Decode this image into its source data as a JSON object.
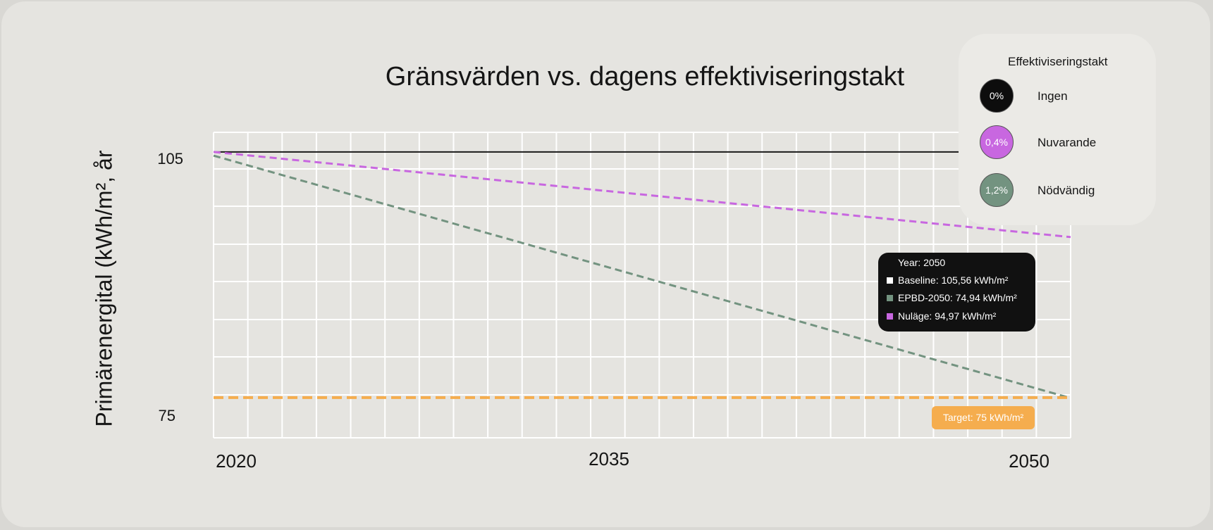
{
  "chart_data": {
    "type": "line",
    "title": "Gränsvärden vs. dagens effektiviseringstakt",
    "ylabel": "Primärenergital (kWh/m², år",
    "xlabel": "",
    "xlim": [
      2020,
      2050
    ],
    "ylim": [
      70,
      108
    ],
    "x_ticks": [
      "2020",
      "2035",
      "2050"
    ],
    "y_ticks": [
      "105",
      "75"
    ],
    "series": [
      {
        "key": "baseline",
        "color": "#1a1a1a",
        "dash": false,
        "x": [
          2020,
          2050
        ],
        "y": [
          105.56,
          105.56
        ]
      },
      {
        "key": "nulage",
        "color": "#c867e0",
        "dash": true,
        "x": [
          2020,
          2050
        ],
        "y": [
          105.56,
          94.97
        ]
      },
      {
        "key": "epbd",
        "color": "#739380",
        "dash": true,
        "x": [
          2020,
          2050
        ],
        "y": [
          105.1,
          74.94
        ]
      },
      {
        "key": "target",
        "color": "#f5ad4e",
        "dash": true,
        "x": [
          2020,
          2050
        ],
        "y": [
          75,
          75
        ]
      }
    ],
    "grid": true
  },
  "legend": {
    "title": "Effektiviseringstakt",
    "items": [
      {
        "rate": "0%",
        "label": "Ingen",
        "color": "#0d0d0d"
      },
      {
        "rate": "0,4%",
        "label": "Nuvarande",
        "color": "#c867e0"
      },
      {
        "rate": "1,2%",
        "label": "Nödvändig",
        "color": "#739380"
      }
    ]
  },
  "tooltip": {
    "year": "Year: 2050",
    "rows": [
      {
        "text": "Baseline: 105,56 kWh/m²",
        "color": "#ffffff"
      },
      {
        "text": "EPBD-2050: 74,94 kWh/m²",
        "color": "#739380"
      },
      {
        "text": "Nuläge: 94,97 kWh/m²",
        "color": "#c867e0"
      }
    ]
  },
  "target_label": "Target: 75 kWh/m²"
}
